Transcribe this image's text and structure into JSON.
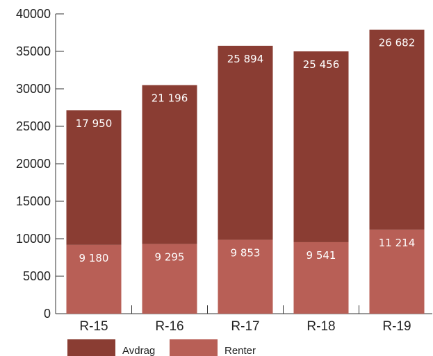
{
  "chart_data": {
    "type": "bar",
    "stacked": true,
    "categories": [
      "R-15",
      "R-16",
      "R-17",
      "R-18",
      "R-19"
    ],
    "series": [
      {
        "name": "Renter",
        "color": "#b85f56",
        "values": [
          9180,
          9295,
          9853,
          9541,
          11214
        ],
        "labels": [
          "9 180",
          "9 295",
          "9 853",
          "9 541",
          "11 214"
        ]
      },
      {
        "name": "Avdrag",
        "color": "#8a3d33",
        "values": [
          17950,
          21196,
          25894,
          25456,
          26682
        ],
        "labels": [
          "17 950",
          "21 196",
          "25 894",
          "25 456",
          "26 682"
        ]
      }
    ],
    "legend_order": [
      "Avdrag",
      "Renter"
    ],
    "legend_placement": "bottom",
    "ylim": [
      0,
      40000
    ],
    "yticks": [
      0,
      5000,
      10000,
      15000,
      20000,
      25000,
      30000,
      35000,
      40000
    ],
    "ytick_labels": [
      "0",
      "5000",
      "10000",
      "15000",
      "20000",
      "25000",
      "30000",
      "35000",
      "40000"
    ],
    "grid": false
  }
}
